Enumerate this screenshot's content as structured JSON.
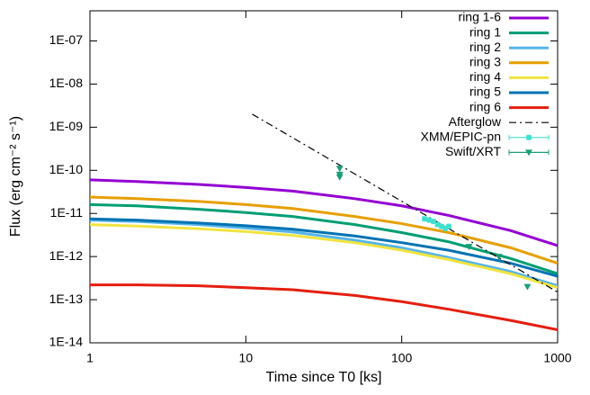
{
  "chart_data": {
    "type": "line",
    "xlabel": "Time since T0 [ks]",
    "ylabel": "Flux (erg cm⁻² s⁻¹)",
    "xscale": "log",
    "yscale": "log",
    "xlim": [
      1,
      1000
    ],
    "ylim": [
      1e-14,
      5e-07
    ],
    "xticks": [
      1,
      10,
      100,
      1000
    ],
    "yticks": [
      {
        "value": 1e-14,
        "label": "1E-14"
      },
      {
        "value": 1e-13,
        "label": "1E-13"
      },
      {
        "value": 1e-12,
        "label": "1E-12"
      },
      {
        "value": 1e-11,
        "label": "1E-11"
      },
      {
        "value": 1e-10,
        "label": "1E-10"
      },
      {
        "value": 1e-09,
        "label": "1E-09"
      },
      {
        "value": 1e-08,
        "label": "1E-08"
      },
      {
        "value": 1e-07,
        "label": "1E-07"
      }
    ],
    "legend": "top-right",
    "series": [
      {
        "name": "ring 1-6",
        "type": "line",
        "color": "#9400d3",
        "x": [
          1,
          2,
          5,
          10,
          20,
          50,
          100,
          200,
          500,
          1000
        ],
        "values": [
          6e-11,
          5.5e-11,
          4.7e-11,
          4e-11,
          3.3e-11,
          2.2e-11,
          1.5e-11,
          9e-12,
          4e-12,
          1.8e-12
        ]
      },
      {
        "name": "ring 1",
        "type": "line",
        "color": "#009e73",
        "x": [
          1,
          2,
          5,
          10,
          20,
          50,
          100,
          200,
          500,
          1000
        ],
        "values": [
          1.6e-11,
          1.5e-11,
          1.25e-11,
          1.05e-11,
          8.5e-12,
          5.5e-12,
          3.6e-12,
          2.2e-12,
          9e-13,
          4e-13
        ]
      },
      {
        "name": "ring 2",
        "type": "line",
        "color": "#56b4e9",
        "x": [
          1,
          2,
          5,
          10,
          20,
          50,
          100,
          200,
          500,
          1000
        ],
        "values": [
          7e-12,
          6.5e-12,
          5.5e-12,
          4.6e-12,
          3.7e-12,
          2.4e-12,
          1.6e-12,
          9.5e-13,
          4.5e-13,
          2.1e-13
        ]
      },
      {
        "name": "ring 3",
        "type": "line",
        "color": "#e69f00",
        "x": [
          1,
          2,
          5,
          10,
          20,
          50,
          100,
          200,
          500,
          1000
        ],
        "values": [
          2.4e-11,
          2.2e-11,
          1.9e-11,
          1.6e-11,
          1.3e-11,
          8.5e-12,
          5.8e-12,
          3.6e-12,
          1.6e-12,
          7e-13
        ]
      },
      {
        "name": "ring 4",
        "type": "line",
        "color": "#f0e442",
        "x": [
          1,
          2,
          5,
          10,
          20,
          50,
          100,
          200,
          500,
          1000
        ],
        "values": [
          5.5e-12,
          5.1e-12,
          4.4e-12,
          3.8e-12,
          3.1e-12,
          2.1e-12,
          1.4e-12,
          8.5e-13,
          4e-13,
          1.9e-13
        ]
      },
      {
        "name": "ring 5",
        "type": "line",
        "color": "#0072b2",
        "x": [
          1,
          2,
          5,
          10,
          20,
          50,
          100,
          200,
          500,
          1000
        ],
        "values": [
          7.5e-12,
          7e-12,
          6e-12,
          5.2e-12,
          4.3e-12,
          3e-12,
          2.1e-12,
          1.4e-12,
          7e-13,
          3.5e-13
        ]
      },
      {
        "name": "ring 6",
        "type": "line",
        "color": "#e51e10",
        "x": [
          1,
          2,
          5,
          10,
          20,
          50,
          100,
          200,
          500,
          1000
        ],
        "values": [
          2.2e-13,
          2.2e-13,
          2.1e-13,
          1.9e-13,
          1.7e-13,
          1.25e-13,
          9e-14,
          6e-14,
          3.3e-14,
          2e-14
        ]
      },
      {
        "name": "Afterglow",
        "type": "dashdot",
        "color": "#000000",
        "x": [
          11,
          1000
        ],
        "values": [
          2e-09,
          1.5e-13
        ]
      },
      {
        "name": "XMM/EPIC-pn",
        "type": "scatter",
        "marker": "star",
        "color": "#40e0d0",
        "x": [
          140,
          150,
          160,
          170,
          180,
          190,
          200
        ],
        "values": [
          7.5e-12,
          7e-12,
          6.5e-12,
          5.5e-12,
          5e-12,
          4.5e-12,
          5e-12
        ]
      },
      {
        "name": "Swift/XRT",
        "type": "scatter",
        "marker": "triangle-down",
        "color": "#1a9e77",
        "x": [
          40,
          40,
          40,
          270,
          420,
          640
        ],
        "values": [
          1.1e-10,
          8e-11,
          7e-11,
          1.7e-12,
          1e-12,
          2e-13
        ]
      }
    ]
  }
}
